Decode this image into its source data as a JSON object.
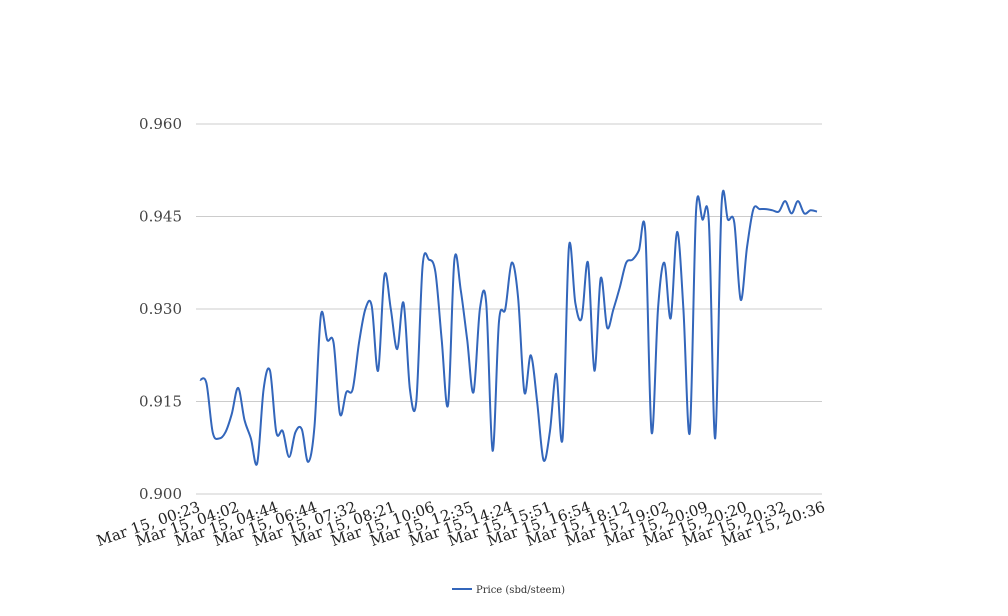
{
  "chart_data": {
    "type": "line",
    "title": "",
    "xlabel": "",
    "ylabel": "",
    "ylim": [
      0.9,
      0.96
    ],
    "y_ticks": [
      "0.900",
      "0.915",
      "0.930",
      "0.945",
      "0.960"
    ],
    "x_tick_labels": [
      "Mar 15, 00:23",
      "Mar 15, 04:02",
      "Mar 15, 04:44",
      "Mar 15, 06:44",
      "Mar 15, 07:32",
      "Mar 15, 08:21",
      "Mar 15, 10:06",
      "Mar 15, 12:35",
      "Mar 15, 14:24",
      "Mar 15, 15:51",
      "Mar 15, 16:54",
      "Mar 15, 18:12",
      "Mar 15, 19:02",
      "Mar 15, 20:09",
      "Mar 15, 20:20",
      "Mar 15, 20:32",
      "Mar 15, 20:36"
    ],
    "grid": true,
    "legend": "bottom-center",
    "series": [
      {
        "name": "Price (sbd/steem)",
        "color": "#3366bb",
        "values": [
          0.9185,
          0.918,
          0.91,
          0.909,
          0.91,
          0.913,
          0.9172,
          0.912,
          0.909,
          0.905,
          0.917,
          0.92,
          0.91,
          0.9102,
          0.906,
          0.91,
          0.9105,
          0.9052,
          0.911,
          0.929,
          0.925,
          0.9245,
          0.913,
          0.9165,
          0.917,
          0.9245,
          0.93,
          0.9305,
          0.92,
          0.9355,
          0.93,
          0.9235,
          0.931,
          0.917,
          0.915,
          0.937,
          0.938,
          0.936,
          0.925,
          0.9145,
          0.938,
          0.933,
          0.925,
          0.9165,
          0.93,
          0.931,
          0.907,
          0.928,
          0.93,
          0.9375,
          0.932,
          0.9165,
          0.9225,
          0.915,
          0.9055,
          0.91,
          0.9195,
          0.909,
          0.94,
          0.931,
          0.9285,
          0.9375,
          0.92,
          0.935,
          0.927,
          0.93,
          0.9335,
          0.9375,
          0.938,
          0.9395,
          0.9425,
          0.91,
          0.93,
          0.9375,
          0.9285,
          0.9425,
          0.93,
          0.91,
          0.946,
          0.9445,
          0.944,
          0.909,
          0.947,
          0.9445,
          0.944,
          0.9315,
          0.94,
          0.9462,
          0.9462,
          0.9462,
          0.946,
          0.9458,
          0.9475,
          0.9455,
          0.9475,
          0.9455,
          0.946,
          0.9458
        ]
      }
    ]
  }
}
